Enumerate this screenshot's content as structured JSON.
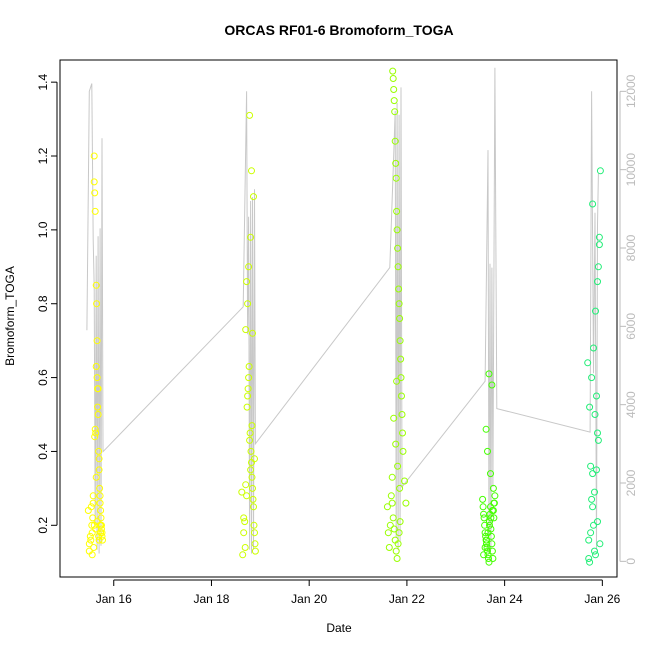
{
  "chart_data": {
    "type": "scatter",
    "title": "ORCAS RF01-6 Bromoform_TOGA",
    "xlabel": "Date",
    "ylabel": "Bromoform_TOGA",
    "x_ticks": [
      "Jan 16",
      "Jan 18",
      "Jan 20",
      "Jan 22",
      "Jan 24",
      "Jan 26"
    ],
    "x_tick_days": [
      16,
      18,
      20,
      22,
      24,
      26
    ],
    "x_range_days": [
      14.9,
      26.3
    ],
    "y_ticks": [
      "0.2",
      "0.4",
      "0.6",
      "0.8",
      "1.0",
      "1.2",
      "1.4"
    ],
    "y_tick_values": [
      0.2,
      0.4,
      0.6,
      0.8,
      1.0,
      1.2,
      1.4
    ],
    "y_range": [
      0.06,
      1.46
    ],
    "y2_ticks": [
      "0",
      "2000",
      "4000",
      "6000",
      "8000",
      "10000",
      "12000"
    ],
    "y2_tick_values": [
      0,
      2000,
      4000,
      6000,
      8000,
      10000,
      12000
    ],
    "y2_range": [
      -400,
      12800
    ],
    "grid": false,
    "legend": "none",
    "colors": {
      "axis": "#000000",
      "y2_axis": "#bbbbbb",
      "altitude_line": "#c8c8c8",
      "frame": "#000000"
    },
    "altitude_line": [
      [
        15.45,
        5900
      ],
      [
        15.5,
        12000
      ],
      [
        15.55,
        12200
      ],
      [
        15.58,
        8200
      ],
      [
        15.6,
        7000
      ],
      [
        15.62,
        900
      ],
      [
        15.64,
        7800
      ],
      [
        15.66,
        300
      ],
      [
        15.68,
        8300
      ],
      [
        15.7,
        200
      ],
      [
        15.72,
        8500
      ],
      [
        15.74,
        400
      ],
      [
        15.76,
        10800
      ],
      [
        15.78,
        2800
      ],
      [
        18.65,
        6500
      ],
      [
        18.72,
        12000
      ],
      [
        18.74,
        5800
      ],
      [
        18.76,
        8800
      ],
      [
        18.78,
        300
      ],
      [
        18.8,
        9200
      ],
      [
        18.82,
        200
      ],
      [
        18.84,
        9300
      ],
      [
        18.86,
        300
      ],
      [
        18.88,
        9500
      ],
      [
        18.9,
        3000
      ],
      [
        21.65,
        7500
      ],
      [
        21.72,
        10000
      ],
      [
        21.76,
        11500
      ],
      [
        21.78,
        600
      ],
      [
        21.8,
        11700
      ],
      [
        21.82,
        300
      ],
      [
        21.84,
        11400
      ],
      [
        21.86,
        500
      ],
      [
        21.88,
        12100
      ],
      [
        21.9,
        1900
      ],
      [
        23.6,
        4600
      ],
      [
        23.66,
        10500
      ],
      [
        23.68,
        200
      ],
      [
        23.7,
        7600
      ],
      [
        23.72,
        300
      ],
      [
        23.74,
        7500
      ],
      [
        23.76,
        1900
      ],
      [
        23.8,
        12600
      ],
      [
        23.84,
        3900
      ],
      [
        25.75,
        3300
      ],
      [
        25.78,
        12000
      ],
      [
        25.82,
        4800
      ],
      [
        25.85,
        8900
      ],
      [
        25.88,
        300
      ],
      [
        25.9,
        8600
      ],
      [
        25.92,
        9900
      ]
    ],
    "series": [
      {
        "flight": "RF01",
        "color": "#ffff00",
        "x": [
          15.48,
          15.5,
          15.52,
          15.54,
          15.55,
          15.56,
          15.57,
          15.58,
          15.59,
          15.6,
          15.6,
          15.61,
          15.62,
          15.62,
          15.63,
          15.64,
          15.64,
          15.65,
          15.66,
          15.66,
          15.67,
          15.68,
          15.68,
          15.69,
          15.7,
          15.7,
          15.71,
          15.72,
          15.72,
          15.73,
          15.74,
          15.74,
          15.75,
          15.76,
          15.76,
          15.77,
          15.5,
          15.53,
          15.56,
          15.6,
          15.63,
          15.66,
          15.69,
          15.72,
          15.75,
          15.58,
          15.61,
          15.64,
          15.67,
          15.7,
          15.73
        ],
        "y": [
          0.24,
          0.13,
          0.17,
          0.25,
          0.2,
          0.12,
          0.22,
          0.26,
          0.14,
          1.13,
          1.2,
          1.1,
          1.05,
          0.46,
          0.45,
          0.33,
          0.85,
          0.8,
          0.7,
          0.6,
          0.57,
          0.57,
          0.5,
          0.4,
          0.38,
          0.35,
          0.3,
          0.28,
          0.26,
          0.24,
          0.22,
          0.2,
          0.19,
          0.18,
          0.17,
          0.16,
          0.15,
          0.16,
          0.18,
          0.2,
          0.19,
          0.21,
          0.17,
          0.2,
          0.2,
          0.28,
          0.44,
          0.63,
          0.52,
          0.16,
          0.18
        ]
      },
      {
        "flight": "RF02",
        "color": "#ccff00",
        "x": [
          18.62,
          18.64,
          18.66,
          18.68,
          18.7,
          18.72,
          18.73,
          18.74,
          18.75,
          18.76,
          18.77,
          18.78,
          18.79,
          18.8,
          18.81,
          18.82,
          18.83,
          18.84,
          18.85,
          18.86,
          18.87,
          18.88,
          18.89,
          18.9,
          18.7,
          18.74,
          18.78,
          18.82,
          18.86,
          18.72,
          18.76,
          18.8,
          18.84,
          18.88,
          18.66,
          18.69,
          18.83
        ],
        "y": [
          0.29,
          0.12,
          0.18,
          0.21,
          0.31,
          0.28,
          0.52,
          0.55,
          0.57,
          0.6,
          0.63,
          0.43,
          0.45,
          0.35,
          0.4,
          0.37,
          0.33,
          0.3,
          0.27,
          0.25,
          0.2,
          0.18,
          0.15,
          0.13,
          0.73,
          0.8,
          1.31,
          1.16,
          1.09,
          0.86,
          0.9,
          0.98,
          0.72,
          0.38,
          0.22,
          0.14,
          0.47
        ]
      },
      {
        "flight": "RF03",
        "color": "#99ff00",
        "x": [
          21.6,
          21.62,
          21.64,
          21.66,
          21.68,
          21.7,
          21.71,
          21.72,
          21.73,
          21.74,
          21.75,
          21.76,
          21.77,
          21.78,
          21.79,
          21.8,
          21.81,
          21.82,
          21.83,
          21.84,
          21.85,
          21.86,
          21.87,
          21.88,
          21.89,
          21.9,
          21.91,
          21.92,
          21.95,
          21.98,
          21.72,
          21.74,
          21.76,
          21.78,
          21.8,
          21.82,
          21.84,
          21.86,
          21.73,
          21.77,
          21.81,
          21.85,
          21.7,
          21.79
        ],
        "y": [
          0.25,
          0.18,
          0.14,
          0.2,
          0.28,
          0.33,
          1.43,
          1.41,
          1.38,
          1.35,
          1.32,
          1.24,
          1.18,
          1.14,
          1.05,
          1.0,
          0.95,
          0.9,
          0.84,
          0.8,
          0.76,
          0.7,
          0.65,
          0.6,
          0.55,
          0.5,
          0.45,
          0.4,
          0.32,
          0.26,
          0.22,
          0.19,
          0.16,
          0.13,
          0.11,
          0.15,
          0.18,
          0.21,
          0.49,
          0.42,
          0.36,
          0.3,
          0.26,
          0.59
        ]
      },
      {
        "flight": "RF04",
        "color": "#44ff00",
        "x": [
          23.55,
          23.56,
          23.57,
          23.58,
          23.59,
          23.6,
          23.61,
          23.62,
          23.63,
          23.64,
          23.65,
          23.66,
          23.67,
          23.68,
          23.69,
          23.7,
          23.71,
          23.72,
          23.73,
          23.74,
          23.75,
          23.76,
          23.77,
          23.78,
          23.79,
          23.8,
          23.57,
          23.6,
          23.63,
          23.66,
          23.69,
          23.72,
          23.75,
          23.78,
          23.62,
          23.68,
          23.74,
          23.65,
          23.71,
          23.77
        ],
        "y": [
          0.27,
          0.25,
          0.23,
          0.22,
          0.2,
          0.18,
          0.17,
          0.16,
          0.15,
          0.14,
          0.13,
          0.12,
          0.11,
          0.1,
          0.21,
          0.23,
          0.25,
          0.19,
          0.17,
          0.15,
          0.13,
          0.11,
          0.24,
          0.22,
          0.26,
          0.28,
          0.12,
          0.14,
          0.16,
          0.18,
          0.2,
          0.22,
          0.24,
          0.26,
          0.46,
          0.61,
          0.58,
          0.4,
          0.34,
          0.3
        ]
      },
      {
        "flight": "RF05",
        "color": "#22ee77",
        "x": [
          25.7,
          25.72,
          25.74,
          25.76,
          25.78,
          25.8,
          25.82,
          25.84,
          25.86,
          25.88,
          25.9,
          25.92,
          25.94,
          25.96,
          25.72,
          25.76,
          25.8,
          25.84,
          25.88,
          25.92,
          25.74,
          25.78,
          25.82,
          25.86,
          25.9,
          25.94,
          25.8,
          25.85,
          25.9,
          25.95
        ],
        "y": [
          0.64,
          0.11,
          0.1,
          0.36,
          0.27,
          0.34,
          0.2,
          0.13,
          0.12,
          0.55,
          0.45,
          0.9,
          0.96,
          1.16,
          0.16,
          0.18,
          0.25,
          0.29,
          0.35,
          0.43,
          0.52,
          0.6,
          0.68,
          0.78,
          0.86,
          0.98,
          1.07,
          0.5,
          0.21,
          0.15
        ]
      }
    ]
  }
}
